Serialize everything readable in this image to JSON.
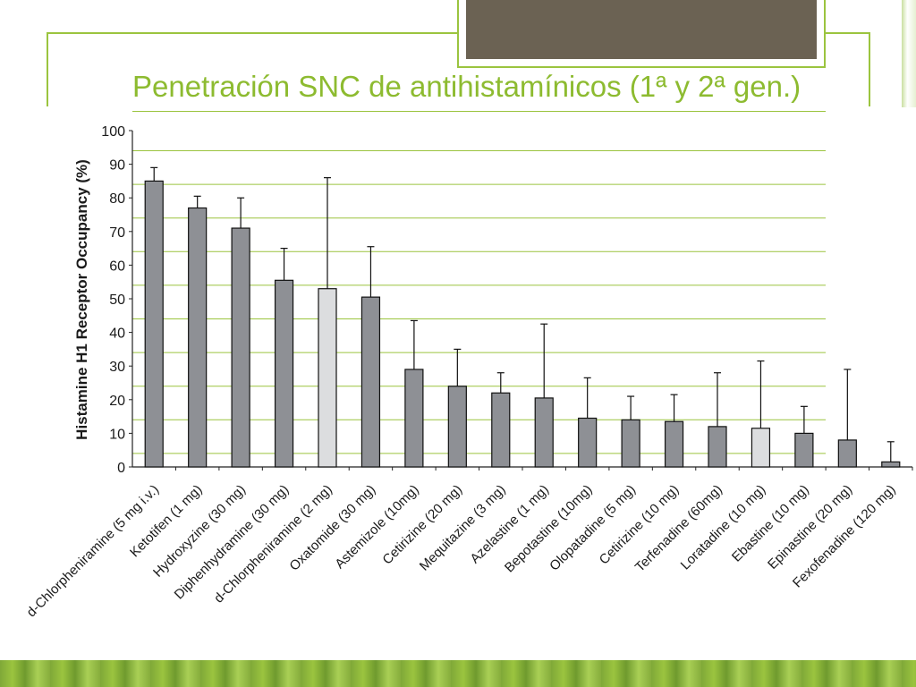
{
  "slide": {
    "title": "Penetración  SNC de antihistamínicos (1ª y 2ª gen.)",
    "accent_color": "#8dbb30"
  },
  "chart_data": {
    "type": "bar",
    "ylabel": "Histamine H1 Receptor Occupancy (%)",
    "ylim": [
      0,
      100
    ],
    "yticks": [
      0,
      10,
      20,
      30,
      40,
      50,
      60,
      70,
      80,
      90,
      100
    ],
    "grid": true,
    "categories": [
      "d-Chlorpheniramine (5 mg i.v.)",
      "Ketotifen (1 mg)",
      "Hydroxyzine (30 mg)",
      "Diphenhydramine (30 mg)",
      "d-Chlorpheniramine (2 mg)",
      "Oxatomide (30 mg)",
      "Astemizole (10mg)",
      "Cetirizine (20 mg)",
      "Mequitazine (3 mg)",
      "Azelastine (1 mg)",
      "Bepotastine (10mg)",
      "Olopatadine (5 mg)",
      "Cetirizine (10 mg)",
      "Terfenadine (60mg)",
      "Loratadine (10 mg)",
      "Ebastine (10 mg)",
      "Epinastine (20 mg)",
      "Fexofenadine (120 mg)"
    ],
    "values": [
      85,
      77,
      71,
      55.5,
      53,
      50.5,
      29,
      24,
      22,
      20.5,
      14.5,
      14,
      13.5,
      12,
      11.5,
      10,
      8,
      1.5
    ],
    "error_upper": [
      89,
      80.5,
      80,
      65,
      86,
      65.5,
      43.5,
      35,
      28,
      42.5,
      26.5,
      21,
      21.5,
      28,
      31.5,
      18,
      29,
      7.5
    ],
    "bar_colors": [
      "#8e9095",
      "#8e9095",
      "#8e9095",
      "#8e9095",
      "#dcdddf",
      "#8e9095",
      "#8e9095",
      "#8e9095",
      "#8e9095",
      "#8e9095",
      "#8e9095",
      "#8e9095",
      "#8e9095",
      "#8e9095",
      "#dcdddf",
      "#8e9095",
      "#8e9095",
      "#8e9095"
    ],
    "grid_color": "#9bc43f"
  }
}
